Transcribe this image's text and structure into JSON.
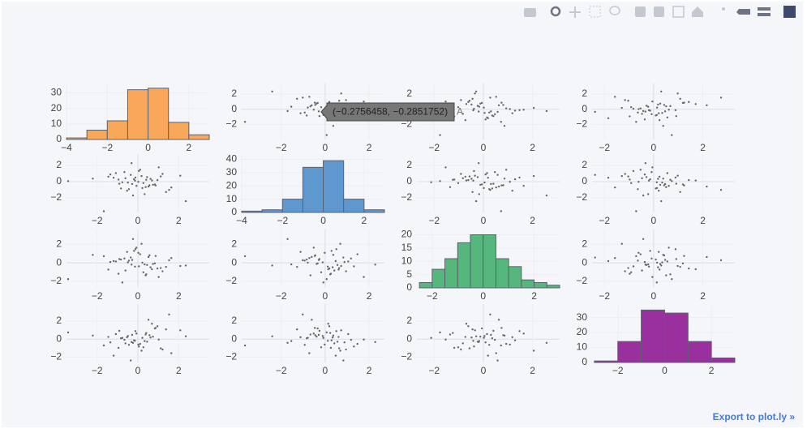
{
  "chart_data": {
    "type": "scatter_matrix",
    "point_color": "#666666",
    "grid": true,
    "dimensions": [
      {
        "values": [
          -0.28,
          1.12,
          -0.53,
          0.41,
          -1.35,
          0.87,
          0.05,
          -0.76,
          1.64,
          -0.12,
          0.33,
          -2.21,
          0.69,
          -0.44,
          1.02,
          -0.91,
          0.18,
          2.35,
          -0.61,
          0.52,
          -1.08,
          0.27,
          -0.19,
          1.38,
          -0.35,
          0.74,
          -3.42,
          0.11,
          -0.83,
          0.96,
          -1.67,
          0.45,
          -0.07,
          1.21,
          -0.49,
          0.62,
          -0.24,
          2.08,
          -1.19,
          0.38,
          -0.66,
          0.83,
          0.02,
          -1.45,
          1.53,
          -0.31,
          0.57,
          -0.95,
          0.22,
          -0.14
        ],
        "hist": {
          "color": "#f9a85a",
          "bins": [
            -4,
            -3,
            -2,
            -1,
            0,
            1,
            2,
            3
          ],
          "counts": [
            1,
            6,
            12,
            32,
            33,
            11,
            3
          ],
          "xlim": [
            -4,
            3
          ],
          "xticks": [
            {
              "value": -4,
              "label": "−4"
            },
            {
              "value": -2,
              "label": "−2"
            },
            0,
            2
          ],
          "ylim": [
            0,
            36
          ],
          "yticks": [
            0,
            10,
            20,
            30
          ]
        }
      },
      {
        "values": [
          -0.29,
          0.64,
          -1.12,
          0.23,
          0.88,
          -0.47,
          1.31,
          -0.08,
          -0.72,
          0.51,
          -1.54,
          0.37,
          0.14,
          -0.93,
          1.76,
          -0.26,
          0.69,
          -2.41,
          0.42,
          -0.61,
          1.05,
          -0.18,
          0.29,
          -1.28,
          0.83,
          -0.39,
          0.07,
          1.47,
          -0.84,
          0.19,
          -3.65,
          0.56,
          -0.52,
          0.95,
          -0.11,
          0.34,
          -1.71,
          0.73,
          0.48,
          -0.67,
          1.18,
          -0.34,
          -0.02,
          0.61,
          -1.02,
          2.28,
          -0.45,
          0.26,
          -0.79,
          0.12
        ],
        "hist": {
          "color": "#5f98cf",
          "bins": [
            -4,
            -3,
            -2,
            -1,
            0,
            1,
            2,
            3
          ],
          "counts": [
            1,
            2,
            10,
            34,
            39,
            10,
            2
          ],
          "xlim": [
            -4,
            3
          ],
          "xticks": [
            {
              "value": -4,
              "label": "−4"
            },
            {
              "value": -2,
              "label": "−2"
            },
            0,
            2
          ],
          "ylim": [
            0,
            44
          ],
          "yticks": [
            0,
            10,
            20,
            30,
            40
          ]
        }
      },
      {
        "values": [
          0.31,
          -0.56,
          1.18,
          -1.24,
          0.09,
          0.74,
          -0.38,
          -2.12,
          0.52,
          1.47,
          -0.17,
          0.86,
          -0.69,
          0.24,
          -1.53,
          0.41,
          2.05,
          -0.29,
          -0.83,
          0.63,
          0.15,
          -1.02,
          1.29,
          -0.44,
          0.58,
          -0.12,
          -1.76,
          0.93,
          0.36,
          -0.61,
          0.72,
          -0.23,
          1.64,
          -0.91,
          0.05,
          -0.48,
          2.57,
          -0.34,
          0.19,
          -1.35,
          0.47,
          -0.06,
          1.08,
          -0.73,
          0.28,
          -0.19,
          0.81,
          -1.18,
          0.02,
          -0.41
        ],
        "hist": {
          "color": "#55b77c",
          "bins": [
            -2.5,
            -2,
            -1.5,
            -1,
            -0.5,
            0,
            0.5,
            1,
            1.5,
            2,
            2.5,
            3
          ],
          "counts": [
            2,
            7,
            11,
            17,
            20,
            20,
            11,
            8,
            3,
            2,
            1
          ],
          "xlim": [
            -2.6,
            3
          ],
          "xticks": [
            {
              "value": -2,
              "label": "−2"
            },
            0,
            2
          ],
          "ylim": [
            0,
            22
          ],
          "yticks": [
            0,
            5,
            10,
            15,
            20
          ]
        }
      },
      {
        "values": [
          0.47,
          -1.03,
          0.21,
          0.68,
          -0.36,
          1.24,
          -0.82,
          0.13,
          -1.57,
          0.89,
          -0.22,
          0.39,
          1.71,
          -0.64,
          -0.05,
          0.92,
          -1.29,
          0.31,
          -0.47,
          2.16,
          0.56,
          -0.91,
          -0.14,
          1.08,
          -2.38,
          0.27,
          0.74,
          -0.53,
          0.09,
          1.43,
          -0.71,
          -0.29,
          0.62,
          -1.16,
          0.35,
          0.18,
          -0.42,
          0.98,
          -1.84,
          0.51,
          -0.08,
          1.19,
          -0.61,
          0.24,
          2.74,
          -0.33,
          0.43,
          -0.97,
          0.14,
          -0.19
        ],
        "hist": {
          "color": "#9a2f9e",
          "bins": [
            -3,
            -2,
            -1,
            0,
            1,
            2,
            3
          ],
          "counts": [
            1,
            14,
            35,
            33,
            14,
            3
          ],
          "xlim": [
            -3.1,
            3
          ],
          "xticks": [
            {
              "value": -2,
              "label": "−2"
            },
            0,
            2
          ],
          "ylim": [
            0,
            39
          ],
          "yticks": [
            0,
            10,
            20,
            30
          ]
        }
      }
    ],
    "scatter_xlims": [
      [
        -3.5,
        3.5
      ],
      [
        -3.8,
        2.7
      ],
      [
        -2.7,
        3.1
      ],
      [
        -2.5,
        3.3
      ]
    ],
    "scatter_ylims": [
      [
        -4,
        3.4
      ],
      [
        -3.8,
        3.4
      ],
      [
        -2.7,
        3.6
      ],
      [
        -2.6,
        3.9
      ]
    ],
    "scatter_ticks": [
      {
        "value": -2,
        "label": "−2"
      },
      0,
      2
    ],
    "hover": {
      "text": "(−0.2756458, −0.2851752)",
      "name": "A"
    }
  },
  "links": {
    "export": "Export to plot.ly »"
  }
}
